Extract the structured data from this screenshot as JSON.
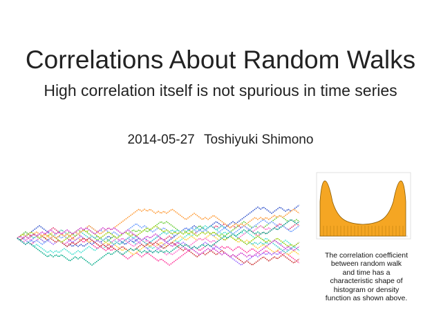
{
  "title": "Correlations About Random Walks",
  "subtitle": "High correlation itself is not spurious in time series",
  "byline": {
    "date": "2014-05-27",
    "author": "Toshiyuki Shimono"
  },
  "caption": {
    "lines": [
      "The correlation coefficient",
      "between random walk",
      "and time has a",
      "characteristic shape of",
      "histogram or density",
      "function as shown above."
    ]
  }
}
